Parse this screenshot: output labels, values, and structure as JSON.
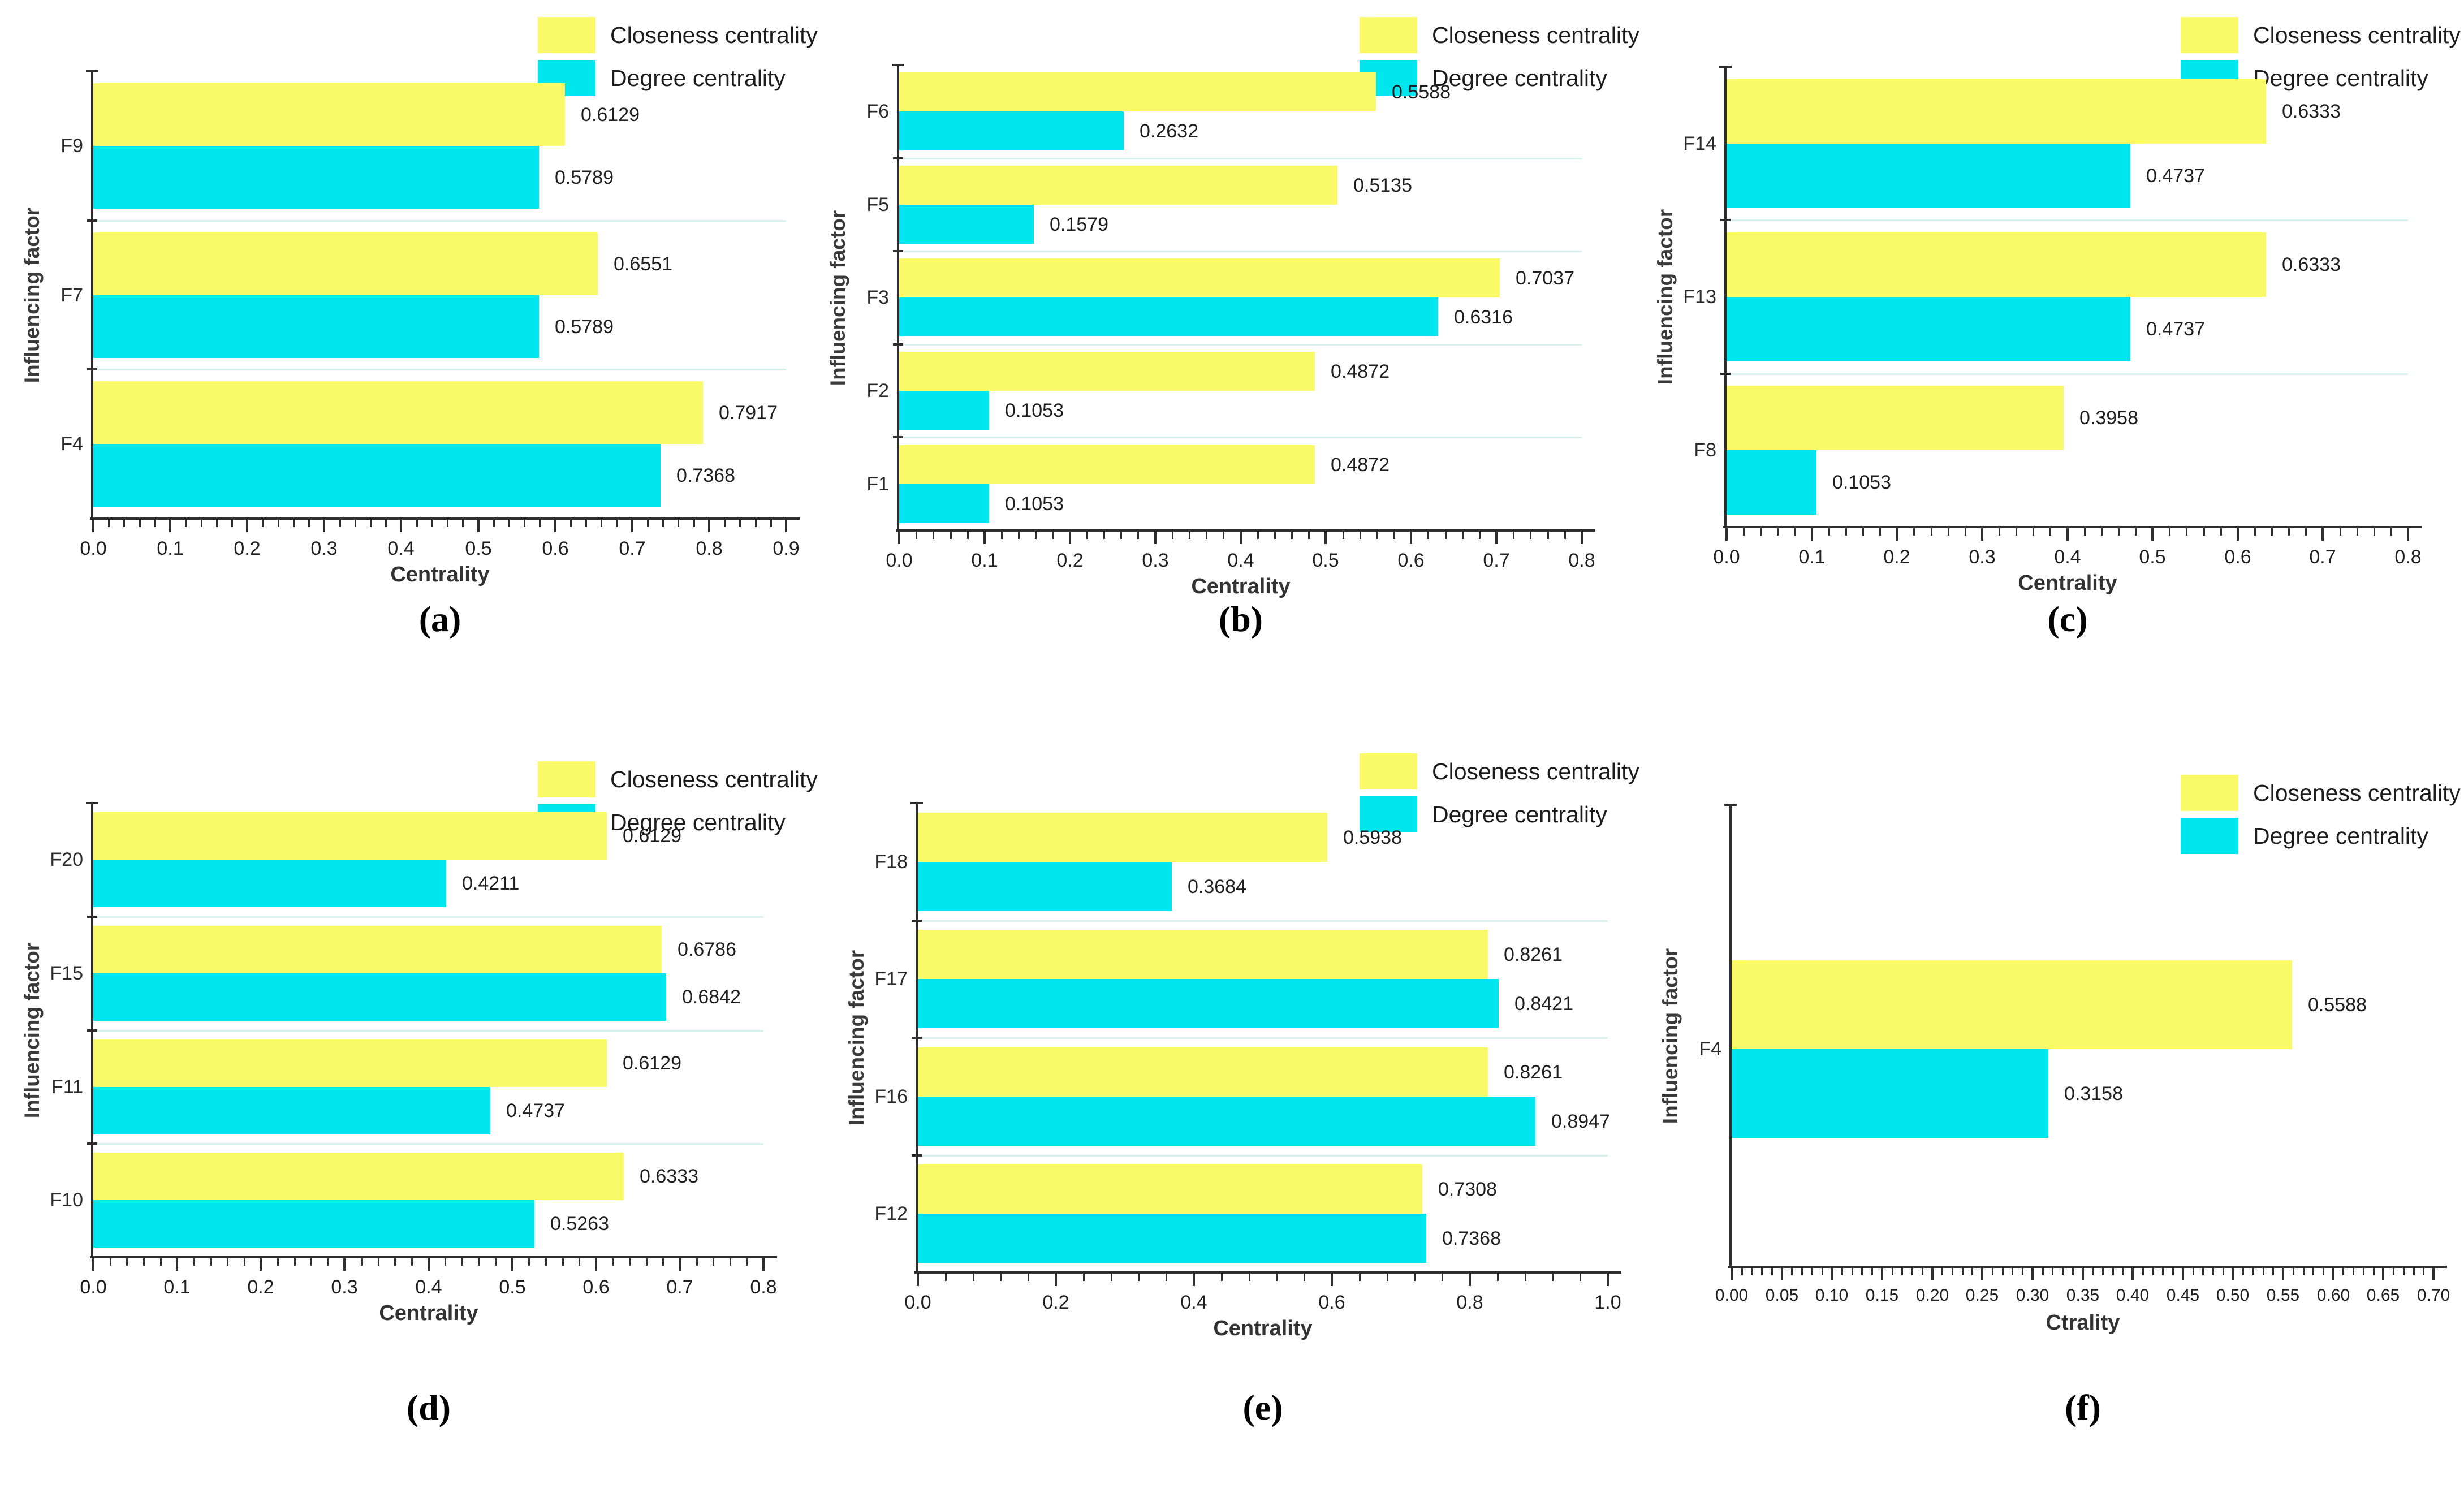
{
  "figure": {
    "background": "#ffffff",
    "colors": {
      "closeness": "#fafa69",
      "degree": "#00e6ef",
      "separator": "#d8f1ef",
      "axis": "#2e2e2e",
      "text": "#1f1f1f",
      "muted_label": "#3a3a3a"
    },
    "legend": {
      "position": "top-right",
      "items": [
        {
          "key": "closeness",
          "label": "Closeness centrality"
        },
        {
          "key": "degree",
          "label": "Degree centrality"
        }
      ]
    }
  },
  "chart_data": [
    {
      "id": "a",
      "caption": "(a)",
      "type": "bar",
      "orientation": "horizontal",
      "grid": false,
      "xlabel": "Centrality",
      "ylabel": "Influencing factor",
      "categories": [
        "F9",
        "F7",
        "F4"
      ],
      "series": [
        {
          "name": "Closeness centrality",
          "values": [
            0.6129,
            0.6551,
            0.7917
          ]
        },
        {
          "name": "Degree centrality",
          "values": [
            0.5789,
            0.5789,
            0.7368
          ]
        }
      ],
      "value_label_decimals": 4,
      "xlim": [
        0.0,
        0.9
      ],
      "xticks": [
        "0.0",
        "0.1",
        "0.2",
        "0.3",
        "0.4",
        "0.5",
        "0.6",
        "0.7",
        "0.8",
        "0.9"
      ],
      "minor_ticks_per_interval": 4
    },
    {
      "id": "b",
      "caption": "(b)",
      "type": "bar",
      "orientation": "horizontal",
      "grid": false,
      "xlabel": "Centrality",
      "ylabel": "Influencing factor",
      "categories": [
        "F6",
        "F5",
        "F3",
        "F2",
        "F1"
      ],
      "series": [
        {
          "name": "Closeness centrality",
          "values": [
            0.5588,
            0.5135,
            0.7037,
            0.4872,
            0.4872
          ]
        },
        {
          "name": "Degree centrality",
          "values": [
            0.2632,
            0.1579,
            0.6316,
            0.1053,
            0.1053
          ]
        }
      ],
      "value_label_decimals": 4,
      "xlim": [
        0.0,
        0.8
      ],
      "xticks": [
        "0.0",
        "0.1",
        "0.2",
        "0.3",
        "0.4",
        "0.5",
        "0.6",
        "0.7",
        "0.8"
      ],
      "minor_ticks_per_interval": 4
    },
    {
      "id": "c",
      "caption": "(c)",
      "type": "bar",
      "orientation": "horizontal",
      "grid": false,
      "xlabel": "Centrality",
      "ylabel": "Influencing factor",
      "categories": [
        "F14",
        "F13",
        "F8"
      ],
      "series": [
        {
          "name": "Closeness centrality",
          "values": [
            0.6333,
            0.6333,
            0.3958
          ]
        },
        {
          "name": "Degree centrality",
          "values": [
            0.4737,
            0.4737,
            0.1053
          ]
        }
      ],
      "value_label_decimals": 4,
      "xlim": [
        0.0,
        0.8
      ],
      "xticks": [
        "0.0",
        "0.1",
        "0.2",
        "0.3",
        "0.4",
        "0.5",
        "0.6",
        "0.7",
        "0.8"
      ],
      "minor_ticks_per_interval": 4
    },
    {
      "id": "d",
      "caption": "(d)",
      "type": "bar",
      "orientation": "horizontal",
      "grid": false,
      "xlabel": "Centrality",
      "ylabel": "Influencing factor",
      "categories": [
        "F20",
        "F15",
        "F11",
        "F10"
      ],
      "series": [
        {
          "name": "Closeness centrality",
          "values": [
            0.6129,
            0.6786,
            0.6129,
            0.6333
          ]
        },
        {
          "name": "Degree centrality",
          "values": [
            0.4211,
            0.6842,
            0.4737,
            0.5263
          ]
        }
      ],
      "value_label_decimals": 4,
      "xlim": [
        0.0,
        0.8
      ],
      "xticks": [
        "0.0",
        "0.1",
        "0.2",
        "0.3",
        "0.4",
        "0.5",
        "0.6",
        "0.7",
        "0.8"
      ],
      "minor_ticks_per_interval": 4
    },
    {
      "id": "e",
      "caption": "(e)",
      "type": "bar",
      "orientation": "horizontal",
      "grid": false,
      "xlabel": "Centrality",
      "ylabel": "Influencing factor",
      "categories": [
        "F18",
        "F17",
        "F16",
        "F12"
      ],
      "series": [
        {
          "name": "Closeness centrality",
          "values": [
            0.5938,
            0.8261,
            0.8261,
            0.7308
          ]
        },
        {
          "name": "Degree centrality",
          "values": [
            0.3684,
            0.8421,
            0.8947,
            0.7368
          ]
        }
      ],
      "value_label_decimals": 4,
      "xlim": [
        0.0,
        1.0
      ],
      "xticks": [
        "0.0",
        "0.2",
        "0.4",
        "0.6",
        "0.8",
        "1.0"
      ],
      "minor_ticks_per_interval": 4
    },
    {
      "id": "f",
      "caption": "(f)",
      "type": "bar",
      "orientation": "horizontal",
      "grid": false,
      "xlabel": "Ctrality",
      "ylabel": "Influencing factor",
      "categories": [
        "F4"
      ],
      "series": [
        {
          "name": "Closeness centrality",
          "values": [
            0.5588
          ]
        },
        {
          "name": "Degree centrality",
          "values": [
            0.3158
          ]
        }
      ],
      "value_label_decimals": 4,
      "xlim": [
        0.0,
        0.7
      ],
      "xticks": [
        "0.00",
        "0.05",
        "0.10",
        "0.15",
        "0.20",
        "0.25",
        "0.30",
        "0.35",
        "0.40",
        "0.45",
        "0.50",
        "0.55",
        "0.60",
        "0.65",
        "0.70"
      ],
      "minor_ticks_per_interval": 4
    }
  ]
}
